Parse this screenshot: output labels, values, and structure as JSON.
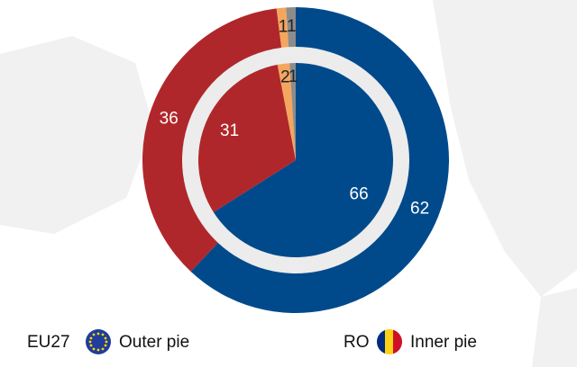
{
  "chart_data": {
    "type": "nested-pie",
    "colors": [
      "#004a8c",
      "#b0272b",
      "#f4a65e",
      "#8c8c8c"
    ],
    "series": [
      {
        "name": "EU27",
        "legend_text": "Outer pie",
        "values": [
          62,
          36,
          1,
          1
        ]
      },
      {
        "name": "RO",
        "legend_text": "Inner pie",
        "values": [
          66,
          31,
          2,
          1
        ]
      }
    ]
  }
}
